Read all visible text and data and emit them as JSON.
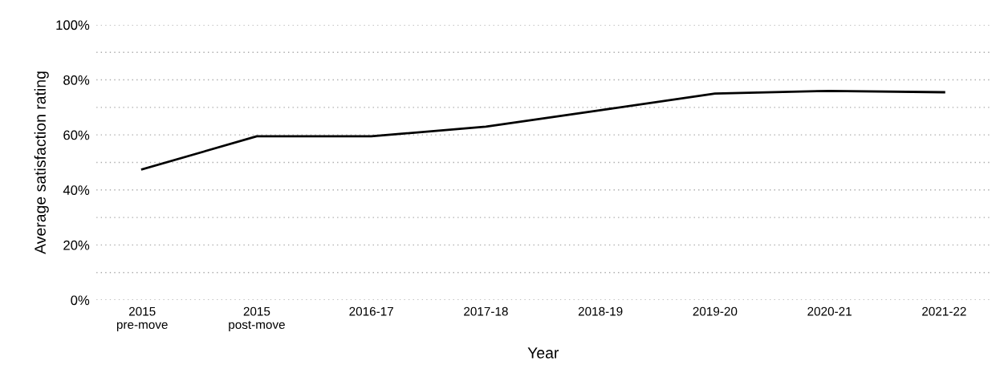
{
  "chart_data": {
    "type": "line",
    "xlabel": "Year",
    "ylabel": "Average satisfaction rating",
    "categories": [
      "2015\npre-move",
      "2015\npost-move",
      "2016-17",
      "2017-18",
      "2018-19",
      "2019-20",
      "2020-21",
      "2021-22"
    ],
    "series": [
      {
        "color": "#000000",
        "values": [
          47.5,
          59.5,
          59.5,
          63,
          69,
          75,
          76,
          75.5
        ]
      }
    ],
    "ylim": [
      0,
      100
    ],
    "yticks": [
      {
        "value": 0,
        "label": "0%"
      },
      {
        "value": 10,
        "label": null
      },
      {
        "value": 20,
        "label": "20%"
      },
      {
        "value": 30,
        "label": null
      },
      {
        "value": 40,
        "label": "40%"
      },
      {
        "value": 50,
        "label": null
      },
      {
        "value": 60,
        "label": "60%"
      },
      {
        "value": 70,
        "label": null
      },
      {
        "value": 80,
        "label": "80%"
      },
      {
        "value": 90,
        "label": null
      },
      {
        "value": 100,
        "label": "100%"
      }
    ],
    "grid": "y",
    "line_style": "solid"
  }
}
